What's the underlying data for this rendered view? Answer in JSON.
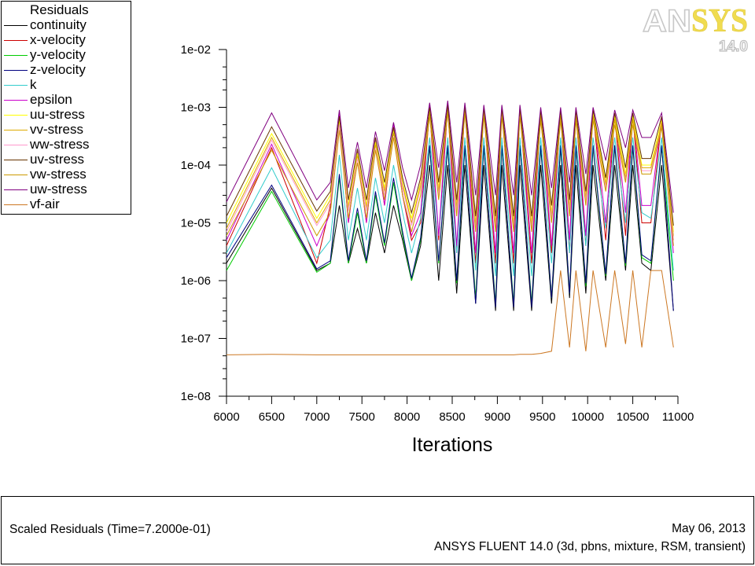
{
  "logo": {
    "brand_left": "AN",
    "brand_right": "SYS",
    "version": "14.0"
  },
  "footer": {
    "title": "Scaled Residuals  (Time=7.2000e-01)",
    "date": "May 06, 2013",
    "solver": "ANSYS FLUENT 14.0 (3d, pbns, mixture, RSM, transient)"
  },
  "chart_data": {
    "type": "line",
    "title": "Scaled Residuals",
    "legend_title": "Residuals",
    "legend_position": "top-left",
    "xlabel": "Iterations",
    "ylabel": "",
    "xlim": [
      6000,
      11000
    ],
    "ylim": [
      1e-08,
      0.01
    ],
    "yscale": "log",
    "grid": false,
    "x_ticks": [
      "6000",
      "6500",
      "7000",
      "7500",
      "8000",
      "8500",
      "9000",
      "9500",
      "10000",
      "10500",
      "11000"
    ],
    "y_ticks": [
      "1e-08",
      "1e-07",
      "1e-06",
      "1e-05",
      "1e-04",
      "1e-03",
      "1e-02"
    ],
    "x": [
      6000,
      6500,
      7000,
      7150,
      7250,
      7350,
      7450,
      7550,
      7650,
      7750,
      7850,
      7950,
      8050,
      8150,
      8250,
      8350,
      8450,
      8550,
      8640,
      8760,
      8850,
      8980,
      9050,
      9180,
      9250,
      9380,
      9480,
      9600,
      9700,
      9800,
      9870,
      9980,
      10060,
      10200,
      10300,
      10420,
      10500,
      10600,
      10700,
      10820,
      10950
    ],
    "series": [
      {
        "name": "continuity",
        "color": "#000000",
        "values": [
          2e-06,
          4e-05,
          1.5e-06,
          2e-06,
          2e-05,
          2e-06,
          8e-06,
          2e-06,
          1.5e-05,
          3e-06,
          2e-05,
          5e-06,
          1e-06,
          4e-06,
          0.0001,
          1e-06,
          0.0001,
          6e-07,
          0.0001,
          4e-07,
          0.0001,
          3e-07,
          0.0001,
          3e-07,
          0.0001,
          3e-07,
          0.0001,
          4e-07,
          0.0001,
          5e-07,
          0.0001,
          6e-07,
          0.0001,
          1e-06,
          0.0001,
          1.5e-06,
          0.0001,
          2e-06,
          1.5e-06,
          0.0001,
          3e-07
        ]
      },
      {
        "name": "x-velocity",
        "color": "#cc0000",
        "values": [
          4e-06,
          0.0002,
          2e-06,
          2e-05,
          0.0007,
          1e-05,
          0.00015,
          1e-05,
          0.00025,
          2e-05,
          0.0004,
          3e-05,
          5e-06,
          1e-05,
          0.0009,
          5e-06,
          0.001,
          3e-06,
          0.001,
          2e-06,
          0.0009,
          2e-06,
          0.0009,
          2e-06,
          0.0009,
          2e-06,
          0.0008,
          3e-06,
          0.0008,
          3e-06,
          0.0008,
          4e-06,
          0.0008,
          5e-06,
          0.0007,
          6e-06,
          0.0007,
          1e-05,
          1e-05,
          0.0006,
          5e-06
        ]
      },
      {
        "name": "y-velocity",
        "color": "#00cc00",
        "values": [
          1.5e-06,
          3.5e-05,
          1.4e-06,
          2e-06,
          6e-05,
          2e-06,
          1.5e-05,
          2e-06,
          3e-05,
          4e-06,
          5e-05,
          6e-06,
          1e-06,
          5e-06,
          0.0002,
          2e-06,
          0.0002,
          9e-07,
          0.0002,
          5e-07,
          0.0002,
          4e-07,
          0.0002,
          4e-07,
          0.0002,
          4e-07,
          0.0002,
          5e-07,
          0.0002,
          6e-07,
          0.0002,
          8e-07,
          0.0002,
          1.2e-06,
          0.0002,
          1.8e-06,
          0.0002,
          2.5e-06,
          2e-06,
          0.0002,
          1e-06
        ]
      },
      {
        "name": "z-velocity",
        "color": "#000080",
        "values": [
          2.5e-06,
          4.5e-05,
          1.6e-06,
          2.2e-06,
          7e-05,
          2.2e-06,
          1.8e-05,
          2.2e-06,
          3.5e-05,
          4.5e-06,
          6e-05,
          7e-06,
          1.1e-06,
          5.5e-06,
          0.00022,
          2.2e-06,
          0.00022,
          1e-06,
          0.00022,
          4e-07,
          0.00022,
          3.5e-07,
          0.00022,
          3.5e-07,
          0.00022,
          3.5e-07,
          0.00022,
          5e-07,
          0.00022,
          6e-07,
          0.00022,
          9e-07,
          0.00022,
          1.3e-06,
          0.00022,
          2e-06,
          0.00022,
          2.8e-06,
          2.2e-06,
          0.00022,
          3e-07
        ]
      },
      {
        "name": "k",
        "color": "#33cccc",
        "values": [
          3e-06,
          9e-05,
          2.5e-06,
          5e-06,
          0.00015,
          5e-06,
          4e-05,
          5e-06,
          6e-05,
          1e-05,
          0.0001,
          1.5e-05,
          3e-06,
          1.2e-05,
          0.0003,
          6e-06,
          0.0003,
          3e-06,
          0.0003,
          1.5e-06,
          0.0003,
          1.2e-06,
          0.0003,
          1.2e-06,
          0.0003,
          1.2e-06,
          0.0003,
          2e-06,
          0.0003,
          3e-06,
          0.0003,
          4e-06,
          0.0003,
          8e-06,
          0.0003,
          1e-05,
          0.0003,
          1.5e-05,
          1.2e-05,
          0.0003,
          1.5e-06
        ]
      },
      {
        "name": "epsilon",
        "color": "#cc00cc",
        "values": [
          5e-06,
          0.00023,
          4e-06,
          1.5e-05,
          0.0008,
          1e-05,
          0.00018,
          1e-05,
          0.0003,
          2e-05,
          0.0005,
          3e-05,
          6e-06,
          1.5e-05,
          0.0011,
          6e-06,
          0.0012,
          4e-06,
          0.0011,
          3e-06,
          0.001,
          3e-06,
          0.001,
          3e-06,
          0.001,
          3e-06,
          0.0009,
          4e-06,
          0.0009,
          5e-06,
          0.0009,
          6e-06,
          0.0009,
          1e-05,
          0.0008,
          1.5e-05,
          0.0008,
          2e-05,
          2e-05,
          0.0007,
          3e-06
        ]
      },
      {
        "name": "uu-stress",
        "color": "#ffff00",
        "values": [
          1e-05,
          0.00035,
          1.2e-05,
          3e-05,
          0.0006,
          2e-05,
          0.00016,
          2e-05,
          0.00025,
          4e-05,
          0.0004,
          5e-05,
          1.2e-05,
          5e-05,
          0.0009,
          4e-05,
          0.001,
          2e-05,
          0.001,
          1e-05,
          0.0009,
          1e-05,
          0.0009,
          1e-05,
          0.0009,
          1e-05,
          0.0008,
          1.5e-05,
          0.0008,
          2e-05,
          0.0008,
          3e-05,
          0.0008,
          5e-05,
          0.0007,
          7e-05,
          0.0007,
          0.0001,
          0.0001,
          0.0006,
          7e-06
        ]
      },
      {
        "name": "vv-stress",
        "color": "#ddaa00",
        "values": [
          8e-06,
          0.0003,
          1e-05,
          2.5e-05,
          0.0005,
          1.8e-05,
          0.00014,
          1.8e-05,
          0.00022,
          3.5e-05,
          0.00035,
          4.5e-05,
          1e-05,
          4.5e-05,
          0.0008,
          3.5e-05,
          0.0009,
          1.8e-05,
          0.0009,
          9e-06,
          0.0008,
          9e-06,
          0.0008,
          9e-06,
          0.0008,
          9e-06,
          0.0007,
          1.3e-05,
          0.0007,
          1.8e-05,
          0.0007,
          2.7e-05,
          0.0007,
          4.5e-05,
          0.0006,
          6e-05,
          0.0006,
          9e-05,
          9e-05,
          0.0005,
          6e-06
        ]
      },
      {
        "name": "ww-stress",
        "color": "#ff99cc",
        "values": [
          7e-06,
          0.00027,
          9e-06,
          2.2e-05,
          0.0005,
          1.6e-05,
          0.00013,
          1.6e-05,
          0.0002,
          3e-05,
          0.00032,
          4e-05,
          9e-06,
          4e-05,
          0.0007,
          3e-05,
          0.0008,
          1.6e-05,
          0.0008,
          8e-06,
          0.0007,
          8e-06,
          0.0007,
          8e-06,
          0.0007,
          8e-06,
          0.0006,
          1.2e-05,
          0.0006,
          1.6e-05,
          0.0006,
          2.4e-05,
          0.0006,
          4e-05,
          0.0005,
          5.5e-05,
          0.0005,
          8e-05,
          8e-05,
          0.00045,
          5e-06
        ]
      },
      {
        "name": "uv-stress",
        "color": "#663300",
        "values": [
          1.3e-05,
          0.00046,
          1.6e-05,
          3.5e-05,
          0.0007,
          2.5e-05,
          0.00019,
          2.5e-05,
          0.0003,
          5e-05,
          0.00045,
          6e-05,
          1.5e-05,
          6e-05,
          0.001,
          5e-05,
          0.0011,
          2.5e-05,
          0.0011,
          1.3e-05,
          0.001,
          1.3e-05,
          0.001,
          1.3e-05,
          0.001,
          1.3e-05,
          0.0009,
          2e-05,
          0.0009,
          2.5e-05,
          0.0009,
          3.5e-05,
          0.0009,
          6e-05,
          0.0008,
          9e-05,
          0.0008,
          0.00013,
          0.00013,
          0.0007,
          9e-06
        ]
      },
      {
        "name": "vw-stress",
        "color": "#cc9900",
        "values": [
          6e-06,
          0.00018,
          6e-06,
          1.5e-05,
          0.0004,
          1.2e-05,
          0.00011,
          1.2e-05,
          0.00018,
          2.5e-05,
          0.0003,
          3e-05,
          7e-06,
          3e-05,
          0.0007,
          2.5e-05,
          0.0008,
          1.3e-05,
          0.0008,
          7e-06,
          0.0007,
          7e-06,
          0.0007,
          7e-06,
          0.0007,
          7e-06,
          0.0006,
          1e-05,
          0.0006,
          1.3e-05,
          0.0006,
          2e-05,
          0.0006,
          3.5e-05,
          0.0005,
          5e-05,
          0.0005,
          7e-05,
          7e-05,
          0.00045,
          4e-06
        ]
      },
      {
        "name": "uw-stress",
        "color": "#800080",
        "values": [
          2.3e-05,
          0.0008,
          2.5e-05,
          5e-05,
          0.0009,
          4e-05,
          0.00025,
          4e-05,
          0.00038,
          8e-05,
          0.00055,
          9e-05,
          2.5e-05,
          0.0001,
          0.0012,
          9e-05,
          0.0013,
          5e-05,
          0.0012,
          3e-05,
          0.0011,
          3e-05,
          0.0011,
          3e-05,
          0.0011,
          3e-05,
          0.001,
          4e-05,
          0.001,
          5e-05,
          0.001,
          7e-05,
          0.001,
          0.00012,
          0.0009,
          0.0002,
          0.0009,
          0.0003,
          0.0003,
          0.0008,
          1.5e-05
        ]
      },
      {
        "name": "vf-air",
        "color": "#cc7722",
        "values": [
          5.2e-08,
          5.3e-08,
          5.2e-08,
          5.2e-08,
          5.2e-08,
          5.2e-08,
          5.2e-08,
          5.2e-08,
          5.2e-08,
          5.2e-08,
          5.2e-08,
          5.2e-08,
          5.2e-08,
          5.2e-08,
          5.2e-08,
          5.2e-08,
          5.2e-08,
          5.2e-08,
          5.2e-08,
          5.2e-08,
          5.2e-08,
          5.2e-08,
          5.2e-08,
          5.2e-08,
          5.3e-08,
          5.3e-08,
          5.5e-08,
          6e-08,
          1.5e-06,
          7e-08,
          1.5e-06,
          6e-08,
          1.5e-06,
          7e-08,
          1.5e-06,
          8e-08,
          1.5e-06,
          7e-08,
          1.5e-06,
          1.5e-06,
          7e-08
        ]
      }
    ]
  }
}
